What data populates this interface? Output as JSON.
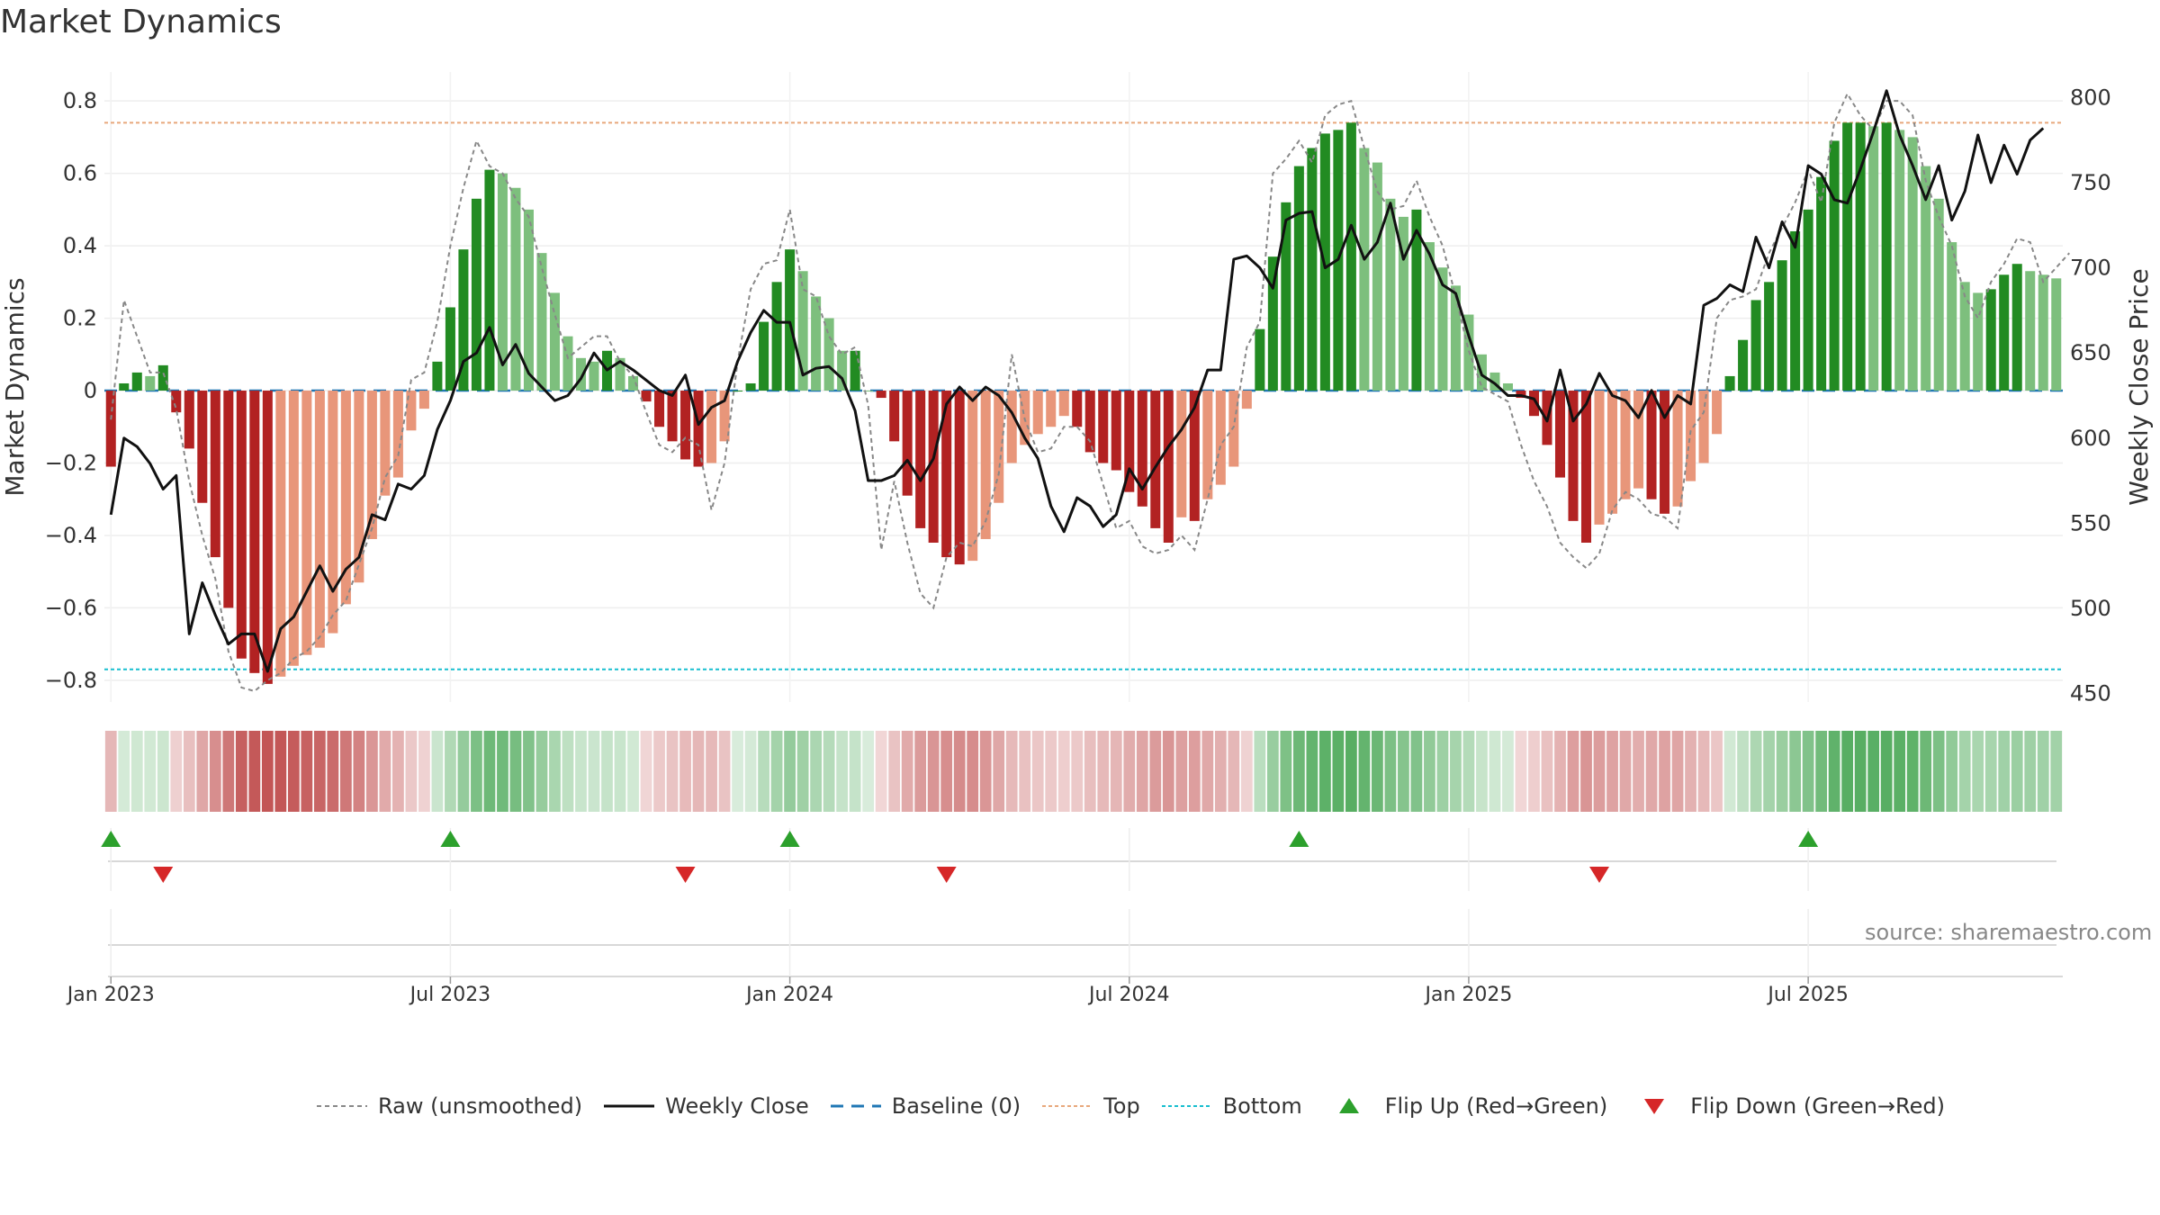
{
  "title": "Market Dynamics",
  "source": "source: sharemaestro.com",
  "colors": {
    "strong_green": "#228b22",
    "light_green": "#7dbf7d",
    "strong_red": "#b22222",
    "light_red": "#e8967a",
    "close": "#111111",
    "raw": "#888888",
    "baseline": "#1f77b4",
    "top": "#e8a87c",
    "bottom": "#17becf",
    "flip_up": "#2ca02c",
    "flip_down": "#d62728"
  },
  "legend": [
    {
      "key": "raw",
      "label": "Raw (unsmoothed)",
      "style": "dash-grey"
    },
    {
      "key": "close",
      "label": "Weekly Close",
      "style": "solid-black"
    },
    {
      "key": "baseline",
      "label": "Baseline (0)",
      "style": "dash-blue"
    },
    {
      "key": "top",
      "label": "Top",
      "style": "dot-orange"
    },
    {
      "key": "bottom",
      "label": "Bottom",
      "style": "dot-cyan"
    },
    {
      "key": "flip_up",
      "label": "Flip Up (Red→Green)",
      "style": "tri-up"
    },
    {
      "key": "flip_down",
      "label": "Flip Down (Green→Red)",
      "style": "tri-down"
    }
  ],
  "chart_data": {
    "type": "bar",
    "title": "Market Dynamics",
    "ylabel": "Market Dynamics",
    "y2label": "Weekly Close Price",
    "ylim": [
      -0.86,
      0.88
    ],
    "y2lim": [
      445,
      815
    ],
    "yticks": [
      {
        "v": 0.8,
        "label": "0.8"
      },
      {
        "v": 0.6,
        "label": "0.6"
      },
      {
        "v": 0.4,
        "label": "0.4"
      },
      {
        "v": 0.2,
        "label": "0.2"
      },
      {
        "v": 0,
        "label": "0"
      },
      {
        "v": -0.2,
        "label": "−0.2"
      },
      {
        "v": -0.4,
        "label": "−0.4"
      },
      {
        "v": -0.6,
        "label": "−0.6"
      },
      {
        "v": -0.8,
        "label": "−0.8"
      }
    ],
    "y2ticks": [
      {
        "v": 800,
        "label": "800"
      },
      {
        "v": 750,
        "label": "750"
      },
      {
        "v": 700,
        "label": "700"
      },
      {
        "v": 650,
        "label": "650"
      },
      {
        "v": 600,
        "label": "600"
      },
      {
        "v": 550,
        "label": "550"
      },
      {
        "v": 500,
        "label": "500"
      },
      {
        "v": 450,
        "label": "450"
      }
    ],
    "xticks": [
      {
        "week": 1,
        "label": "Jan 2023"
      },
      {
        "week": 27,
        "label": "Jul 2023"
      },
      {
        "week": 53,
        "label": "Jan 2024"
      },
      {
        "week": 79,
        "label": "Jul 2024"
      },
      {
        "week": 105,
        "label": "Jan 2025"
      },
      {
        "week": 131,
        "label": "Jul 2025"
      }
    ],
    "x_start": "2022-12-30",
    "x_step": "1 week",
    "top_level": 0.74,
    "bottom_level": -0.77,
    "baseline": 0,
    "dynamics": [
      -0.21,
      0.02,
      0.05,
      0.04,
      0.07,
      -0.06,
      -0.16,
      -0.31,
      -0.46,
      -0.6,
      -0.74,
      -0.78,
      -0.81,
      -0.79,
      -0.76,
      -0.73,
      -0.71,
      -0.67,
      -0.59,
      -0.53,
      -0.41,
      -0.29,
      -0.24,
      -0.11,
      -0.05,
      0.08,
      0.23,
      0.39,
      0.53,
      0.61,
      0.6,
      0.56,
      0.5,
      0.38,
      0.27,
      0.15,
      0.09,
      0.08,
      0.11,
      0.09,
      0.04,
      -0.03,
      -0.1,
      -0.14,
      -0.19,
      -0.21,
      -0.2,
      -0.14,
      0.0,
      0.02,
      0.19,
      0.3,
      0.39,
      0.33,
      0.26,
      0.2,
      0.11,
      0.11,
      0.0,
      -0.02,
      -0.14,
      -0.29,
      -0.38,
      -0.42,
      -0.46,
      -0.48,
      -0.47,
      -0.41,
      -0.31,
      -0.2,
      -0.15,
      -0.12,
      -0.1,
      -0.07,
      -0.1,
      -0.17,
      -0.2,
      -0.22,
      -0.28,
      -0.32,
      -0.38,
      -0.42,
      -0.35,
      -0.36,
      -0.3,
      -0.26,
      -0.21,
      -0.05,
      0.17,
      0.37,
      0.52,
      0.62,
      0.67,
      0.71,
      0.72,
      0.74,
      0.67,
      0.63,
      0.53,
      0.48,
      0.5,
      0.41,
      0.34,
      0.29,
      0.21,
      0.1,
      0.05,
      0.02,
      -0.02,
      -0.07,
      -0.15,
      -0.24,
      -0.36,
      -0.42,
      -0.37,
      -0.34,
      -0.3,
      -0.27,
      -0.3,
      -0.34,
      -0.32,
      -0.25,
      -0.2,
      -0.12,
      0.04,
      0.14,
      0.25,
      0.3,
      0.36,
      0.44,
      0.5,
      0.59,
      0.69,
      0.74,
      0.74,
      0.73,
      0.74,
      0.72,
      0.7,
      0.62,
      0.53,
      0.41,
      0.3,
      0.27,
      0.28,
      0.32,
      0.35,
      0.33,
      0.32,
      0.31
    ],
    "raw": [
      -0.08,
      0.25,
      0.15,
      0.05,
      0.05,
      -0.05,
      -0.25,
      -0.4,
      -0.52,
      -0.72,
      -0.82,
      -0.83,
      -0.8,
      -0.78,
      -0.74,
      -0.72,
      -0.68,
      -0.62,
      -0.58,
      -0.48,
      -0.38,
      -0.24,
      -0.18,
      0.03,
      0.05,
      0.19,
      0.4,
      0.56,
      0.69,
      0.62,
      0.6,
      0.53,
      0.48,
      0.34,
      0.21,
      0.09,
      0.12,
      0.15,
      0.15,
      0.08,
      0.04,
      -0.06,
      -0.15,
      -0.17,
      -0.13,
      -0.15,
      -0.33,
      -0.2,
      0.08,
      0.28,
      0.35,
      0.36,
      0.5,
      0.28,
      0.26,
      0.15,
      0.1,
      0.12,
      -0.04,
      -0.44,
      -0.25,
      -0.42,
      -0.56,
      -0.6,
      -0.46,
      -0.42,
      -0.43,
      -0.36,
      -0.23,
      0.1,
      -0.08,
      -0.17,
      -0.16,
      -0.1,
      -0.1,
      -0.14,
      -0.26,
      -0.38,
      -0.36,
      -0.43,
      -0.45,
      -0.44,
      -0.4,
      -0.44,
      -0.3,
      -0.15,
      -0.1,
      0.12,
      0.19,
      0.6,
      0.64,
      0.69,
      0.63,
      0.76,
      0.79,
      0.8,
      0.67,
      0.55,
      0.5,
      0.51,
      0.58,
      0.48,
      0.4,
      0.26,
      0.11,
      0.01,
      -0.01,
      -0.03,
      -0.15,
      -0.25,
      -0.32,
      -0.42,
      -0.46,
      -0.49,
      -0.45,
      -0.33,
      -0.28,
      -0.3,
      -0.34,
      -0.35,
      -0.38,
      -0.11,
      -0.06,
      0.2,
      0.25,
      0.26,
      0.28,
      0.38,
      0.45,
      0.52,
      0.61,
      0.52,
      0.74,
      0.82,
      0.76,
      0.72,
      0.8,
      0.8,
      0.76,
      0.58,
      0.48,
      0.4,
      0.26,
      0.2,
      0.3,
      0.35,
      0.42,
      0.41,
      0.3,
      0.34,
      0.38
    ],
    "close": [
      555,
      600,
      595,
      585,
      570,
      578,
      485,
      515,
      496,
      479,
      485,
      485,
      463,
      488,
      495,
      510,
      525,
      510,
      523,
      530,
      555,
      552,
      573,
      570,
      578,
      605,
      622,
      645,
      650,
      665,
      643,
      655,
      638,
      630,
      622,
      625,
      635,
      650,
      640,
      645,
      640,
      634,
      628,
      625,
      637,
      608,
      618,
      622,
      645,
      662,
      675,
      668,
      668,
      637,
      641,
      642,
      635,
      616,
      575,
      575,
      578,
      587,
      575,
      588,
      620,
      630,
      622,
      630,
      625,
      615,
      600,
      588,
      560,
      545,
      565,
      560,
      548,
      555,
      582,
      570,
      583,
      595,
      605,
      618,
      640,
      640,
      705,
      707,
      700,
      688,
      728,
      732,
      733,
      700,
      705,
      725,
      705,
      715,
      738,
      705,
      722,
      708,
      690,
      685,
      660,
      637,
      632,
      625,
      625,
      623,
      610,
      640,
      610,
      620,
      638,
      625,
      622,
      612,
      628,
      612,
      625,
      620,
      678,
      682,
      690,
      686,
      718,
      700,
      727,
      712,
      760,
      755,
      740,
      738,
      758,
      780,
      804,
      778,
      760,
      740,
      760,
      728,
      745,
      778,
      750,
      772,
      755,
      775,
      782
    ],
    "flip_up_weeks": [
      1,
      27,
      53,
      92,
      131
    ],
    "flip_down_weeks": [
      5,
      45,
      65,
      115
    ]
  }
}
